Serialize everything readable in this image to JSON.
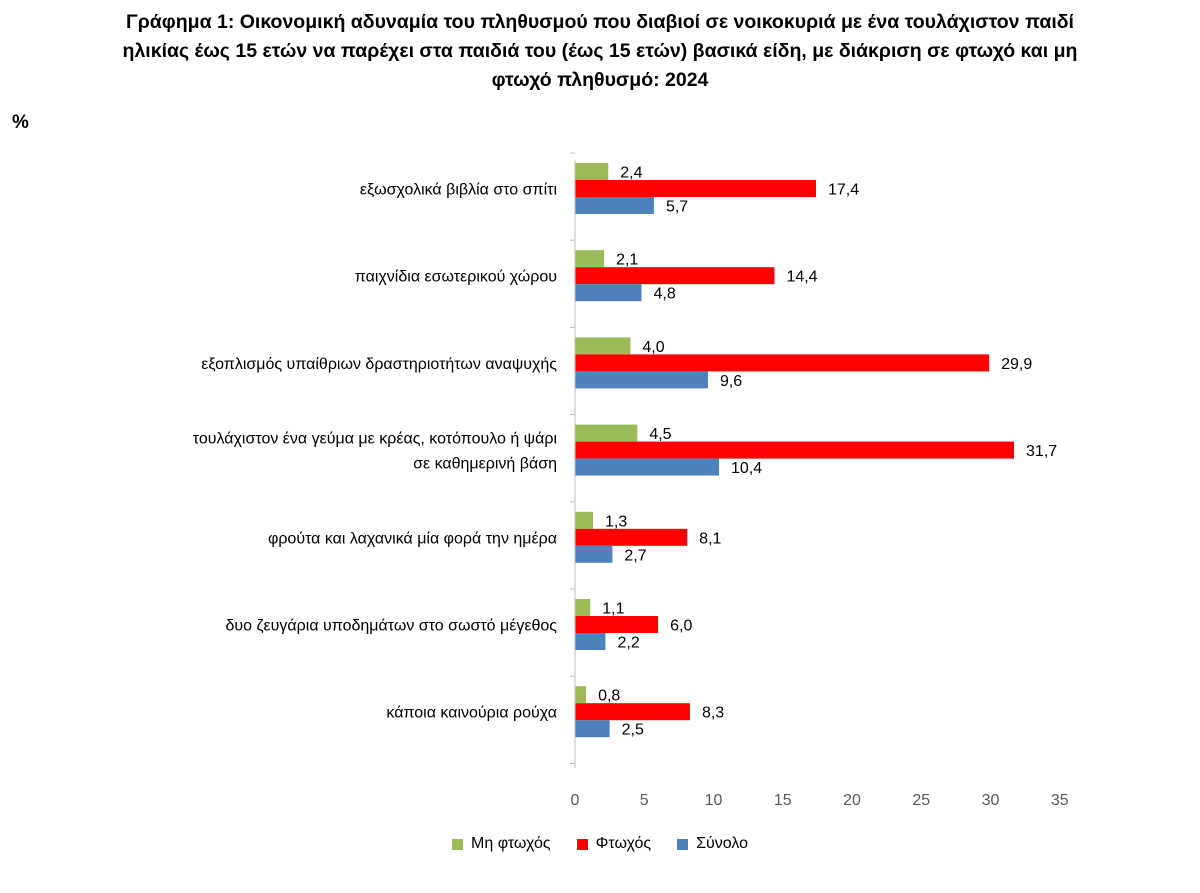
{
  "title_lines": [
    "Γράφημα 1: Οικονομική αδυναμία του πληθυσμού που διαβιοί σε νοικοκυριά με ένα τουλάχιστον παιδί",
    "ηλικίας έως 15 ετών να παρέχει στα παιδιά του (έως 15 ετών) βασικά είδη, με διάκριση σε φτωχό και μη",
    "φτωχό πληθυσμό: 2024"
  ],
  "unit_label": "%",
  "chart_data": {
    "type": "bar",
    "orientation": "horizontal",
    "title": "Γράφημα 1: Οικονομική αδυναμία του πληθυσμού που διαβιοί σε νοικοκυριά με ένα τουλάχιστον παιδί ηλικίας έως 15 ετών να παρέχει στα παιδιά του (έως 15 ετών) βασικά είδη, με διάκριση σε φτωχό και μη φτωχό πληθυσμό: 2024",
    "ylabel": "%",
    "categories": [
      [
        "εξωσχολικά βιβλία στο σπίτι"
      ],
      [
        "παιχνίδια εσωτερικού χώρου"
      ],
      [
        "εξοπλισμός υπαίθριων δραστηριοτήτων αναψυχής"
      ],
      [
        "τουλάχιστον ένα γεύμα με κρέας, κοτόπουλο ή ψάρι",
        "σε καθημερινή βάση"
      ],
      [
        "φρούτα και λαχανικά μία φορά την ημέρα"
      ],
      [
        "δυο ζευγάρια υποδημάτων στο σωστό μέγεθος"
      ],
      [
        "κάποια καινούρια ρούχα"
      ]
    ],
    "series": [
      {
        "name": "Μη φτωχός",
        "color": "#9BBB59",
        "values": [
          2.4,
          2.1,
          4.0,
          4.5,
          1.3,
          1.1,
          0.8
        ],
        "labels": [
          "2,4",
          "2,1",
          "4,0",
          "4,5",
          "1,3",
          "1,1",
          "0,8"
        ]
      },
      {
        "name": "Φτωχός",
        "color": "#FF0000",
        "values": [
          17.4,
          14.4,
          29.9,
          31.7,
          8.1,
          6.0,
          8.3
        ],
        "labels": [
          "17,4",
          "14,4",
          "29,9",
          "31,7",
          "8,1",
          "6,0",
          "8,3"
        ]
      },
      {
        "name": "Σύνολο",
        "color": "#4F81BD",
        "values": [
          5.7,
          4.8,
          9.6,
          10.4,
          2.7,
          2.2,
          2.5
        ],
        "labels": [
          "5,7",
          "4,8",
          "9,6",
          "10,4",
          "2,7",
          "2,2",
          "2,5"
        ]
      }
    ],
    "xlim": [
      0,
      35
    ],
    "xticks": [
      0,
      5,
      10,
      15,
      20,
      25,
      30,
      35
    ],
    "grid": false,
    "legend_position": "bottom"
  }
}
